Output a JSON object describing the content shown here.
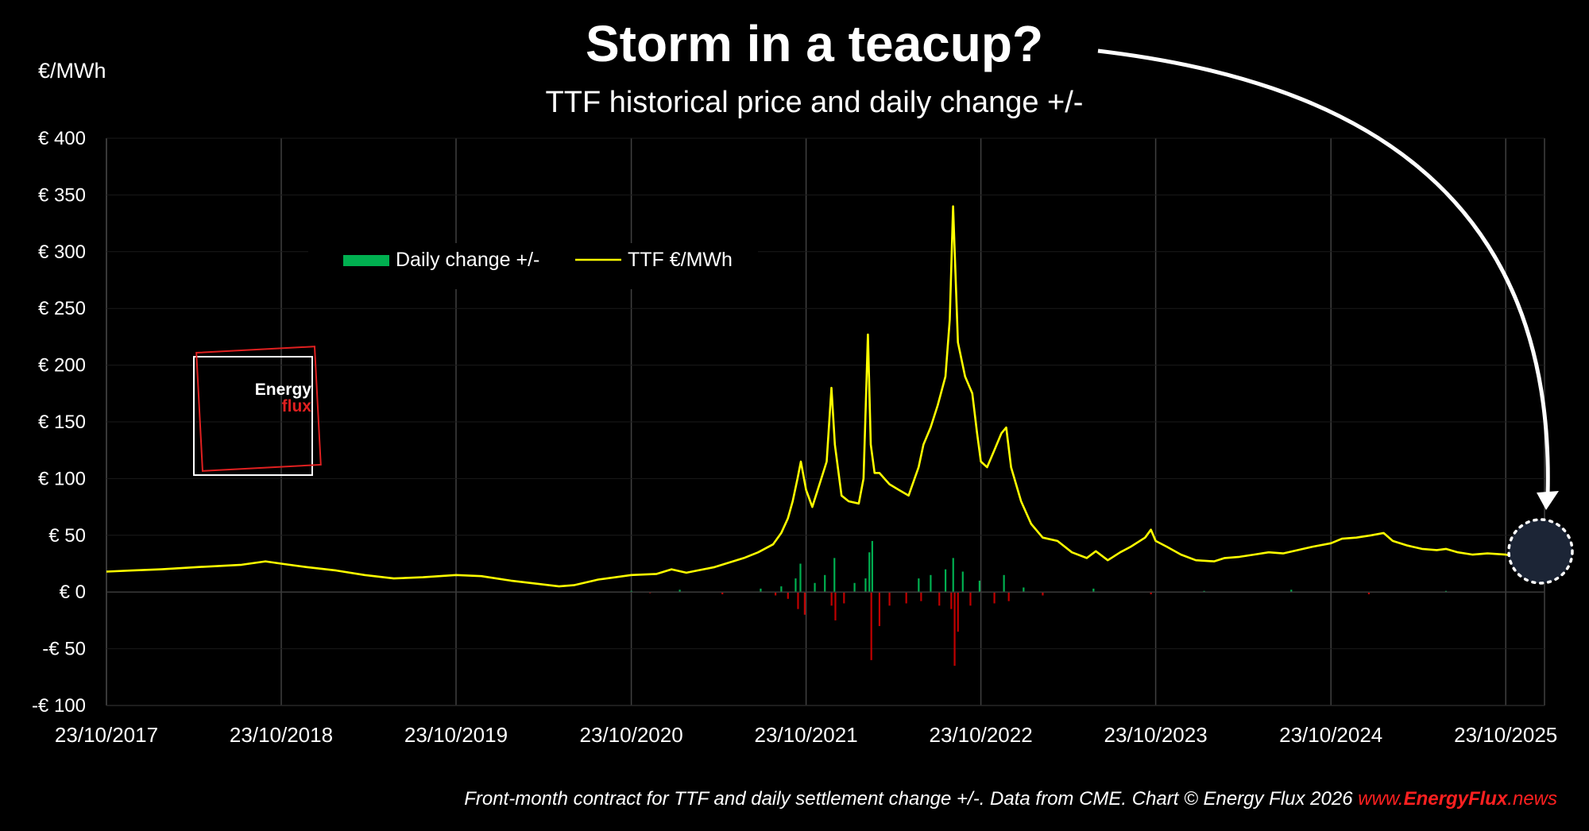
{
  "chart_data": {
    "type": "line",
    "title": "Storm in a teacup?",
    "subtitle": "TTF historical price and daily change +/-",
    "ylabel": "€/MWh",
    "ylim": [
      -100,
      400
    ],
    "yticks": [
      400,
      350,
      300,
      250,
      200,
      150,
      100,
      50,
      0,
      -50,
      -100
    ],
    "ytick_labels": [
      "€ 400",
      "€ 350",
      "€ 300",
      "€ 250",
      "€ 200",
      "€ 150",
      "€ 100",
      "€ 50",
      "€ 0",
      "-€ 50",
      "-€ 100"
    ],
    "xticks": [
      "2017-10-23",
      "2018-10-23",
      "2019-10-23",
      "2020-10-23",
      "2021-10-23",
      "2022-10-23",
      "2023-10-23",
      "2024-10-23",
      "2025-10-23"
    ],
    "xtick_labels": [
      "23/10/2017",
      "23/10/2018",
      "23/10/2019",
      "23/10/2020",
      "23/10/2021",
      "23/10/2022",
      "23/10/2023",
      "23/10/2024",
      "23/10/2025"
    ],
    "xlim": [
      "2017-10-23",
      "2026-01-15"
    ],
    "grid": "vertical",
    "legend_position": "top-left",
    "series": [
      {
        "name": "TTF €/MWh",
        "type": "line",
        "color": "#ffff00",
        "x": [
          "2017-10-23",
          "2017-12-15",
          "2018-02-15",
          "2018-05-01",
          "2018-08-01",
          "2018-09-20",
          "2018-10-23",
          "2018-12-15",
          "2019-02-15",
          "2019-04-15",
          "2019-06-15",
          "2019-08-15",
          "2019-10-23",
          "2019-12-15",
          "2020-02-15",
          "2020-04-15",
          "2020-05-25",
          "2020-06-25",
          "2020-08-15",
          "2020-10-23",
          "2020-12-15",
          "2021-01-15",
          "2021-02-15",
          "2021-04-15",
          "2021-06-15",
          "2021-07-15",
          "2021-08-15",
          "2021-09-01",
          "2021-09-15",
          "2021-09-25",
          "2021-10-05",
          "2021-10-12",
          "2021-10-23",
          "2021-11-05",
          "2021-11-20",
          "2021-12-05",
          "2021-12-15",
          "2021-12-22",
          "2022-01-05",
          "2022-01-20",
          "2022-02-10",
          "2022-02-20",
          "2022-03-01",
          "2022-03-07",
          "2022-03-15",
          "2022-03-25",
          "2022-04-15",
          "2022-05-05",
          "2022-05-25",
          "2022-06-15",
          "2022-06-25",
          "2022-07-10",
          "2022-07-25",
          "2022-08-10",
          "2022-08-19",
          "2022-08-26",
          "2022-09-05",
          "2022-09-20",
          "2022-10-05",
          "2022-10-15",
          "2022-10-23",
          "2022-11-05",
          "2022-11-20",
          "2022-12-05",
          "2022-12-15",
          "2022-12-25",
          "2023-01-15",
          "2023-02-05",
          "2023-03-01",
          "2023-04-01",
          "2023-05-01",
          "2023-06-01",
          "2023-06-20",
          "2023-07-15",
          "2023-08-10",
          "2023-09-01",
          "2023-10-01",
          "2023-10-13",
          "2023-10-23",
          "2023-11-15",
          "2023-12-15",
          "2024-01-15",
          "2024-02-22",
          "2024-03-15",
          "2024-04-15",
          "2024-05-15",
          "2024-06-15",
          "2024-07-15",
          "2024-08-15",
          "2024-09-15",
          "2024-10-23",
          "2024-11-15",
          "2024-12-15",
          "2025-01-15",
          "2025-02-10",
          "2025-03-01",
          "2025-04-01",
          "2025-05-01",
          "2025-06-01",
          "2025-06-20",
          "2025-07-15",
          "2025-08-15",
          "2025-09-15",
          "2025-10-23",
          "2025-11-15",
          "2025-12-01",
          "2025-12-15",
          "2026-01-05",
          "2026-01-15"
        ],
        "values": [
          18,
          19,
          20,
          22,
          24,
          27,
          25,
          22,
          19,
          15,
          12,
          13,
          15,
          14,
          10,
          7,
          5,
          6,
          11,
          15,
          16,
          20,
          17,
          22,
          30,
          35,
          42,
          52,
          65,
          80,
          100,
          115,
          90,
          75,
          95,
          115,
          180,
          130,
          85,
          80,
          78,
          100,
          227,
          130,
          105,
          105,
          95,
          90,
          85,
          110,
          130,
          145,
          165,
          190,
          240,
          340,
          220,
          190,
          175,
          140,
          115,
          110,
          125,
          140,
          145,
          110,
          80,
          60,
          48,
          45,
          35,
          30,
          36,
          28,
          35,
          40,
          48,
          55,
          45,
          40,
          33,
          28,
          27,
          30,
          31,
          33,
          35,
          34,
          37,
          40,
          43,
          47,
          48,
          50,
          52,
          45,
          41,
          38,
          37,
          38,
          35,
          33,
          34,
          33,
          31,
          31,
          29,
          28,
          37
        ]
      },
      {
        "name": "Daily change +/-",
        "type": "bar",
        "color_up": "#00b050",
        "color_down": "#c00000",
        "x": [
          "2020-10-23",
          "2020-12-01",
          "2021-02-01",
          "2021-05-01",
          "2021-07-20",
          "2021-08-20",
          "2021-09-01",
          "2021-09-15",
          "2021-10-01",
          "2021-10-06",
          "2021-10-11",
          "2021-10-20",
          "2021-11-10",
          "2021-12-01",
          "2021-12-15",
          "2021-12-21",
          "2021-12-23",
          "2022-01-10",
          "2022-02-01",
          "2022-02-24",
          "2022-03-04",
          "2022-03-08",
          "2022-03-10",
          "2022-03-25",
          "2022-04-15",
          "2022-05-20",
          "2022-06-15",
          "2022-06-20",
          "2022-07-10",
          "2022-07-28",
          "2022-08-10",
          "2022-08-22",
          "2022-08-26",
          "2022-08-29",
          "2022-09-05",
          "2022-09-15",
          "2022-10-01",
          "2022-10-20",
          "2022-11-20",
          "2022-12-10",
          "2022-12-20",
          "2023-01-20",
          "2023-03-01",
          "2023-06-15",
          "2023-10-13",
          "2024-02-01",
          "2024-08-01",
          "2025-01-10",
          "2025-06-20"
        ],
        "values": [
          1,
          -1,
          2,
          -2,
          3,
          -3,
          5,
          -6,
          12,
          -15,
          25,
          -20,
          8,
          15,
          -12,
          30,
          -25,
          -10,
          8,
          12,
          35,
          -60,
          45,
          -30,
          -12,
          -10,
          12,
          -8,
          15,
          -12,
          20,
          -15,
          30,
          -65,
          -35,
          18,
          -12,
          10,
          -10,
          15,
          -8,
          4,
          -3,
          3,
          -2,
          1,
          2,
          -2,
          1
        ]
      }
    ],
    "annotations": [
      "Energy",
      "flux"
    ]
  },
  "legend": {
    "bar_label": "Daily change +/-",
    "line_label": "TTF €/MWh"
  },
  "footer": {
    "note": "Front-month contract for TTF and daily settlement change +/-. Data from CME. Chart © Energy Flux 2026 ",
    "site_prefix": "www.",
    "site_brand": "EnergyFlux",
    "site_suffix": ".news"
  },
  "colors": {
    "background": "#000000",
    "line": "#ffff00",
    "up": "#00b050",
    "down": "#c00000",
    "grid": "#404040",
    "logo_red": "#e02020"
  }
}
